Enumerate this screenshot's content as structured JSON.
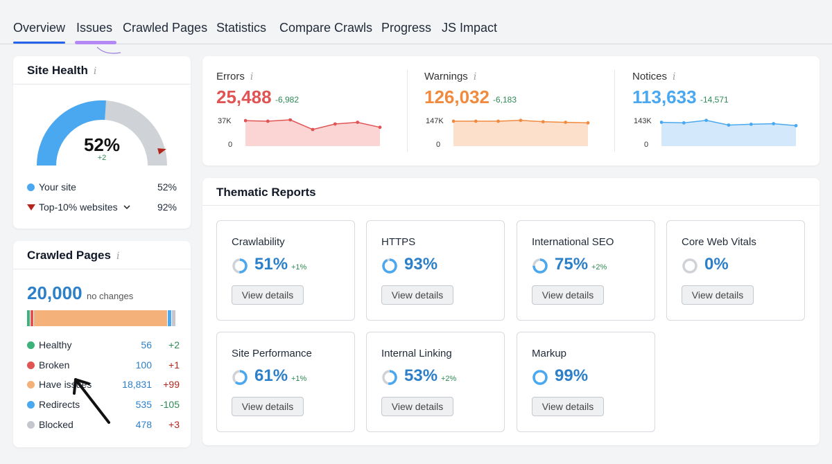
{
  "tabs": [
    "Overview",
    "Issues",
    "Crawled Pages",
    "Statistics",
    "Compare Crawls",
    "Progress",
    "JS Impact"
  ],
  "site_health": {
    "title": "Site Health",
    "info": "i",
    "value": "52%",
    "delta": "+2",
    "gauge_fraction": 0.52,
    "top10_fraction": 0.92,
    "legend": [
      {
        "label": "Your site",
        "value": "52%",
        "color": "#4aa8f0"
      },
      {
        "label": "Top-10% websites",
        "value": "92%",
        "color": "#b3261e"
      }
    ]
  },
  "crawled_pages": {
    "title": "Crawled Pages",
    "info": "i",
    "total": "20,000",
    "note": "no changes",
    "rows": [
      {
        "label": "Healthy",
        "value": "56",
        "change": "+2",
        "color": "#3bb37a",
        "tone": "pos",
        "share": 56
      },
      {
        "label": "Broken",
        "value": "100",
        "change": "+1",
        "color": "#e05454",
        "tone": "neg",
        "share": 100
      },
      {
        "label": "Have issues",
        "value": "18,831",
        "change": "+99",
        "color": "#f4b27a",
        "tone": "neg",
        "share": 18831
      },
      {
        "label": "Redirects",
        "value": "535",
        "change": "-105",
        "color": "#4aa8f0",
        "tone": "pos",
        "share": 535
      },
      {
        "label": "Blocked",
        "value": "478",
        "change": "+3",
        "color": "#c4c8ce",
        "tone": "neg",
        "share": 478
      }
    ]
  },
  "metrics": [
    {
      "label": "Errors",
      "value": "25,488",
      "delta": "-6,982",
      "y_top": "37K",
      "y_bottom": "0",
      "color": "#e05454",
      "fill": "#fbd4d4",
      "series": [
        0.92,
        0.9,
        0.95,
        0.6,
        0.8,
        0.86,
        0.68
      ]
    },
    {
      "label": "Warnings",
      "value": "126,032",
      "delta": "-6,183",
      "y_top": "147K",
      "y_bottom": "0",
      "color": "#f08a3e",
      "fill": "#fce0cc",
      "series": [
        0.9,
        0.9,
        0.9,
        0.93,
        0.88,
        0.86,
        0.84
      ]
    },
    {
      "label": "Notices",
      "value": "113,633",
      "delta": "-14,571",
      "y_top": "143K",
      "y_bottom": "0",
      "color": "#4aa8f0",
      "fill": "#d3e9fb",
      "series": [
        0.86,
        0.84,
        0.93,
        0.76,
        0.79,
        0.81,
        0.74
      ]
    }
  ],
  "thematic": {
    "title": "Thematic Reports",
    "button_label": "View details",
    "reports": [
      {
        "name": "Crawlability",
        "pct": "51%",
        "delta": "+1%",
        "fraction": 0.51
      },
      {
        "name": "HTTPS",
        "pct": "93%",
        "delta": "",
        "fraction": 0.93
      },
      {
        "name": "International SEO",
        "pct": "75%",
        "delta": "+2%",
        "fraction": 0.75
      },
      {
        "name": "Core Web Vitals",
        "pct": "0%",
        "delta": "",
        "fraction": 0.0
      },
      {
        "name": "Site Performance",
        "pct": "61%",
        "delta": "+1%",
        "fraction": 0.61
      },
      {
        "name": "Internal Linking",
        "pct": "53%",
        "delta": "+2%",
        "fraction": 0.53
      },
      {
        "name": "Markup",
        "pct": "99%",
        "delta": "",
        "fraction": 0.99
      }
    ]
  },
  "colors": {
    "accent": "#2c7fc9",
    "positive": "#2e8a55",
    "negative": "#b3261e"
  }
}
